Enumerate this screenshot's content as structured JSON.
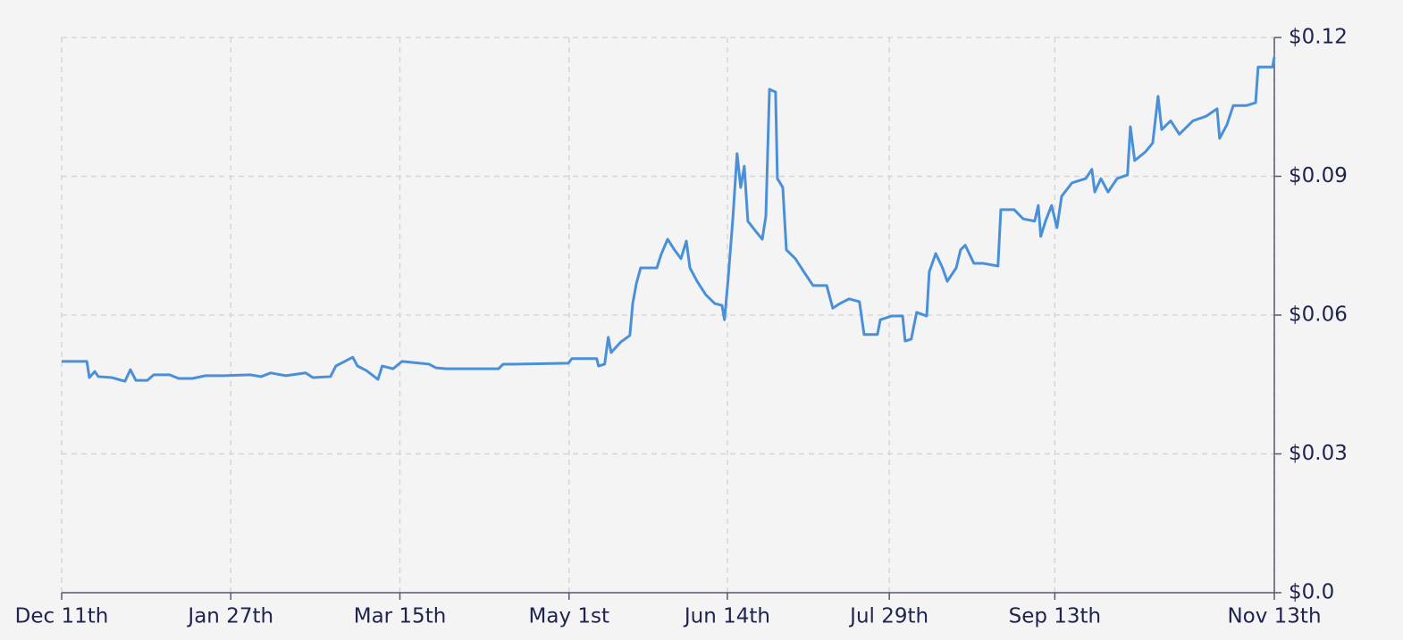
{
  "chart_data": {
    "type": "line",
    "color": "#4a90d9",
    "grid": true,
    "y_axis_side": "right",
    "xlim": [
      0,
      337
    ],
    "xticks": [
      {
        "value": 0,
        "label": "Dec 11th"
      },
      {
        "value": 47,
        "label": "Jan 27th"
      },
      {
        "value": 94,
        "label": "Mar 15th"
      },
      {
        "value": 141,
        "label": "May 1st"
      },
      {
        "value": 185,
        "label": "Jun 14th"
      },
      {
        "value": 230,
        "label": "Jul 29th"
      },
      {
        "value": 276,
        "label": "Sep 13th"
      },
      {
        "value": 337,
        "label": "Nov 13th"
      }
    ],
    "ylim": [
      0,
      0.12
    ],
    "yticks": [
      {
        "value": 0,
        "label": "$0.0"
      },
      {
        "value": 0.03,
        "label": "$0.03"
      },
      {
        "value": 0.06,
        "label": "$0.06"
      },
      {
        "value": 0.09,
        "label": "$0.09"
      },
      {
        "value": 0.12,
        "label": "$0.12"
      }
    ],
    "x": [
      0,
      7.0,
      7.7,
      9.2,
      10.2,
      13.9,
      17.6,
      19.1,
      20.6,
      23.8,
      25.6,
      30.0,
      32.5,
      36.3,
      40.0,
      45.0,
      52.4,
      55.4,
      58.1,
      62.3,
      67.8,
      69.8,
      74.7,
      76.2,
      78.7,
      80.9,
      82.2,
      84.7,
      87.9,
      89.1,
      92.1,
      94.6,
      102.1,
      104.0,
      107.0,
      121.4,
      122.7,
      125.6,
      140.8,
      141.8,
      148.7,
      149.2,
      150.9,
      151.9,
      152.7,
      155.4,
      157.9,
      158.7,
      159.7,
      160.9,
      165.4,
      166.6,
      168.4,
      170.3,
      172.1,
      173.6,
      174.6,
      176.6,
      179.0,
      181.5,
      183.5,
      184.2,
      185.2,
      186.5,
      187.7,
      188.7,
      189.7,
      190.7,
      192.7,
      194.7,
      195.7,
      196.7,
      198.4,
      198.9,
      200.4,
      201.4,
      203.9,
      206.3,
      208.8,
      212.6,
      214.3,
      216.3,
      218.8,
      221.7,
      223.0,
      226.7,
      227.5,
      230.7,
      233.7,
      234.4,
      236.1,
      237.6,
      240.4,
      241.1,
      242.9,
      244.8,
      246.1,
      248.6,
      249.8,
      251.1,
      253.5,
      256.0,
      260.2,
      261.0,
      264.7,
      267.2,
      270.4,
      271.4,
      272.1,
      273.4,
      275.1,
      276.6,
      277.9,
      280.8,
      284.6,
      286.3,
      287.1,
      288.8,
      290.8,
      293.3,
      296.2,
      297.0,
      298.2,
      301.2,
      303.2,
      304.7,
      305.7,
      308.2,
      310.6,
      314.4,
      318.1,
      321.1,
      321.8,
      323.8,
      325.6,
      329.3,
      331.8,
      332.5,
      336.5,
      337.0
    ],
    "values": [
      0.05,
      0.05,
      0.0465,
      0.0478,
      0.0467,
      0.0465,
      0.0457,
      0.0482,
      0.0459,
      0.0459,
      0.0471,
      0.0471,
      0.0463,
      0.0463,
      0.0469,
      0.0469,
      0.0471,
      0.0467,
      0.0475,
      0.0469,
      0.0475,
      0.0465,
      0.0467,
      0.049,
      0.05,
      0.0509,
      0.049,
      0.048,
      0.0461,
      0.049,
      0.0484,
      0.05,
      0.0494,
      0.0486,
      0.0484,
      0.0484,
      0.0494,
      0.0494,
      0.0496,
      0.0506,
      0.0506,
      0.049,
      0.0494,
      0.0552,
      0.0519,
      0.0542,
      0.0556,
      0.0625,
      0.0668,
      0.0702,
      0.0702,
      0.0731,
      0.0764,
      0.0741,
      0.0722,
      0.076,
      0.0702,
      0.0673,
      0.0644,
      0.0625,
      0.0621,
      0.059,
      0.0677,
      0.0806,
      0.0949,
      0.0876,
      0.0922,
      0.0803,
      0.0783,
      0.0764,
      0.0814,
      0.1088,
      0.1082,
      0.0895,
      0.0876,
      0.0741,
      0.0722,
      0.0693,
      0.0664,
      0.0664,
      0.0615,
      0.0625,
      0.0635,
      0.0629,
      0.0558,
      0.0558,
      0.059,
      0.0598,
      0.0598,
      0.0544,
      0.0548,
      0.0606,
      0.0598,
      0.0693,
      0.0733,
      0.0702,
      0.0673,
      0.0702,
      0.0741,
      0.0751,
      0.0712,
      0.0712,
      0.0706,
      0.0828,
      0.0828,
      0.0808,
      0.0803,
      0.0837,
      0.077,
      0.0803,
      0.0837,
      0.0789,
      0.0857,
      0.0886,
      0.0895,
      0.0915,
      0.0866,
      0.0895,
      0.0866,
      0.0895,
      0.0903,
      0.1007,
      0.0934,
      0.0953,
      0.0972,
      0.1073,
      0.1001,
      0.102,
      0.0991,
      0.102,
      0.103,
      0.1046,
      0.0982,
      0.1011,
      0.1053,
      0.1053,
      0.1059,
      0.1136,
      0.1136,
      0.1158
    ]
  }
}
